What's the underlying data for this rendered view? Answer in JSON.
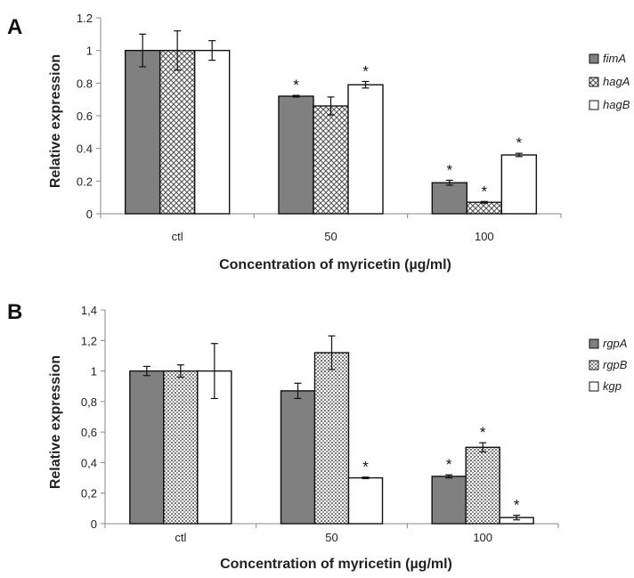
{
  "chart_data": [
    {
      "type": "bar",
      "panel_label": "A",
      "categories": [
        "ctl",
        "50",
        "100"
      ],
      "xlabel": "Concentration of myricetin (µg/ml)",
      "ylabel": "Relative expression",
      "ylim": [
        0,
        1.2
      ],
      "yticks": [
        "0",
        "0.2",
        "0.4",
        "0.6",
        "0.8",
        "1",
        "1.2"
      ],
      "legend_position": "right",
      "series": [
        {
          "name": "fimA",
          "values": [
            1.0,
            0.72,
            0.19
          ],
          "errors": [
            0.1,
            0.005,
            0.015
          ],
          "significant": [
            false,
            true,
            true
          ],
          "fill": "solid-gray"
        },
        {
          "name": "hagA",
          "values": [
            1.0,
            0.66,
            0.07
          ],
          "errors": [
            0.12,
            0.055,
            0.005
          ],
          "significant": [
            false,
            false,
            true
          ],
          "fill": "crosshatch"
        },
        {
          "name": "hagB",
          "values": [
            1.0,
            0.79,
            0.36
          ],
          "errors": [
            0.06,
            0.02,
            0.01
          ],
          "significant": [
            false,
            true,
            true
          ],
          "fill": "white"
        }
      ],
      "significance_marker": "*"
    },
    {
      "type": "bar",
      "panel_label": "B",
      "categories": [
        "ctl",
        "50",
        "100"
      ],
      "xlabel": "Concentration of myricetin (µg/ml)",
      "ylabel": "Relative expression",
      "ylim": [
        0,
        1.4
      ],
      "yticks": [
        "0",
        "0,2",
        "0,4",
        "0,6",
        "0,8",
        "1",
        "1,2",
        "1,4"
      ],
      "legend_position": "right",
      "series": [
        {
          "name": "rgpA",
          "values": [
            1.0,
            0.87,
            0.31
          ],
          "errors": [
            0.03,
            0.05,
            0.01
          ],
          "significant": [
            false,
            false,
            true
          ],
          "fill": "solid-gray"
        },
        {
          "name": "rgpB",
          "values": [
            1.0,
            1.12,
            0.5
          ],
          "errors": [
            0.04,
            0.11,
            0.03
          ],
          "significant": [
            false,
            false,
            true
          ],
          "fill": "dots"
        },
        {
          "name": "kgp",
          "values": [
            1.0,
            0.3,
            0.04
          ],
          "errors": [
            0.18,
            0.005,
            0.015
          ],
          "significant": [
            false,
            true,
            true
          ],
          "fill": "white"
        }
      ],
      "significance_marker": "*"
    }
  ],
  "colors": {
    "solid_gray": "#808080",
    "axis": "#888888",
    "bar_stroke": "#111111"
  }
}
